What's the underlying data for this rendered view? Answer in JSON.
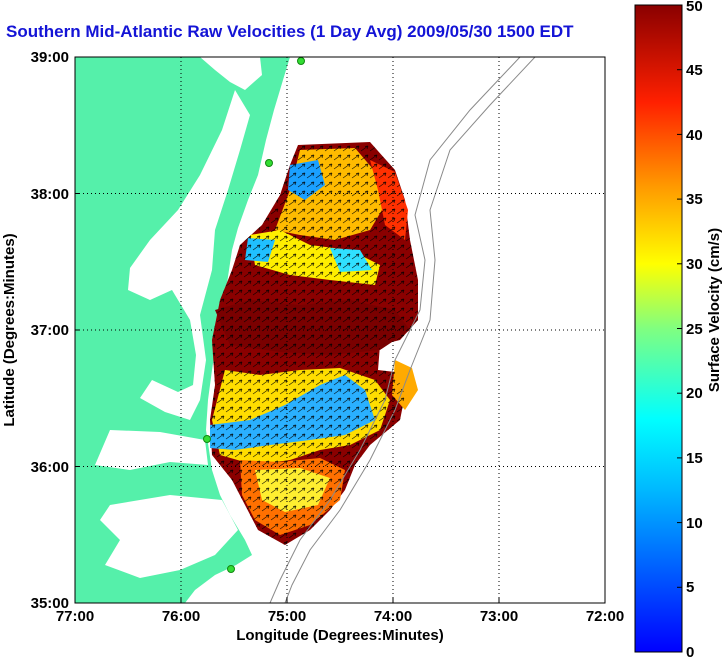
{
  "title": "Southern Mid-Atlantic Raw Velocities (1 Day Avg) 2009/05/30 1500 EDT",
  "map": {
    "xlabel": "Longitude (Degrees:Minutes)",
    "ylabel": "Latitude (Degrees:Minutes)",
    "x_ticks": [
      "77:00",
      "76:00",
      "75:00",
      "74:00",
      "73:00",
      "72:00"
    ],
    "y_ticks": [
      "39:00",
      "38:00",
      "37:00",
      "36:00",
      "35:00"
    ],
    "xlim": [
      -77,
      -72
    ],
    "ylim": [
      35,
      39
    ],
    "grid": "dotted",
    "land_color": "#55f0aa",
    "water_color": "#ffffff"
  },
  "colorbar": {
    "label": "Surface Velocity (cm/s)",
    "ticks": [
      "0",
      "5",
      "10",
      "15",
      "20",
      "25",
      "30",
      "35",
      "40",
      "45",
      "50"
    ],
    "range": [
      0,
      50
    ],
    "colormap": "jet"
  }
}
